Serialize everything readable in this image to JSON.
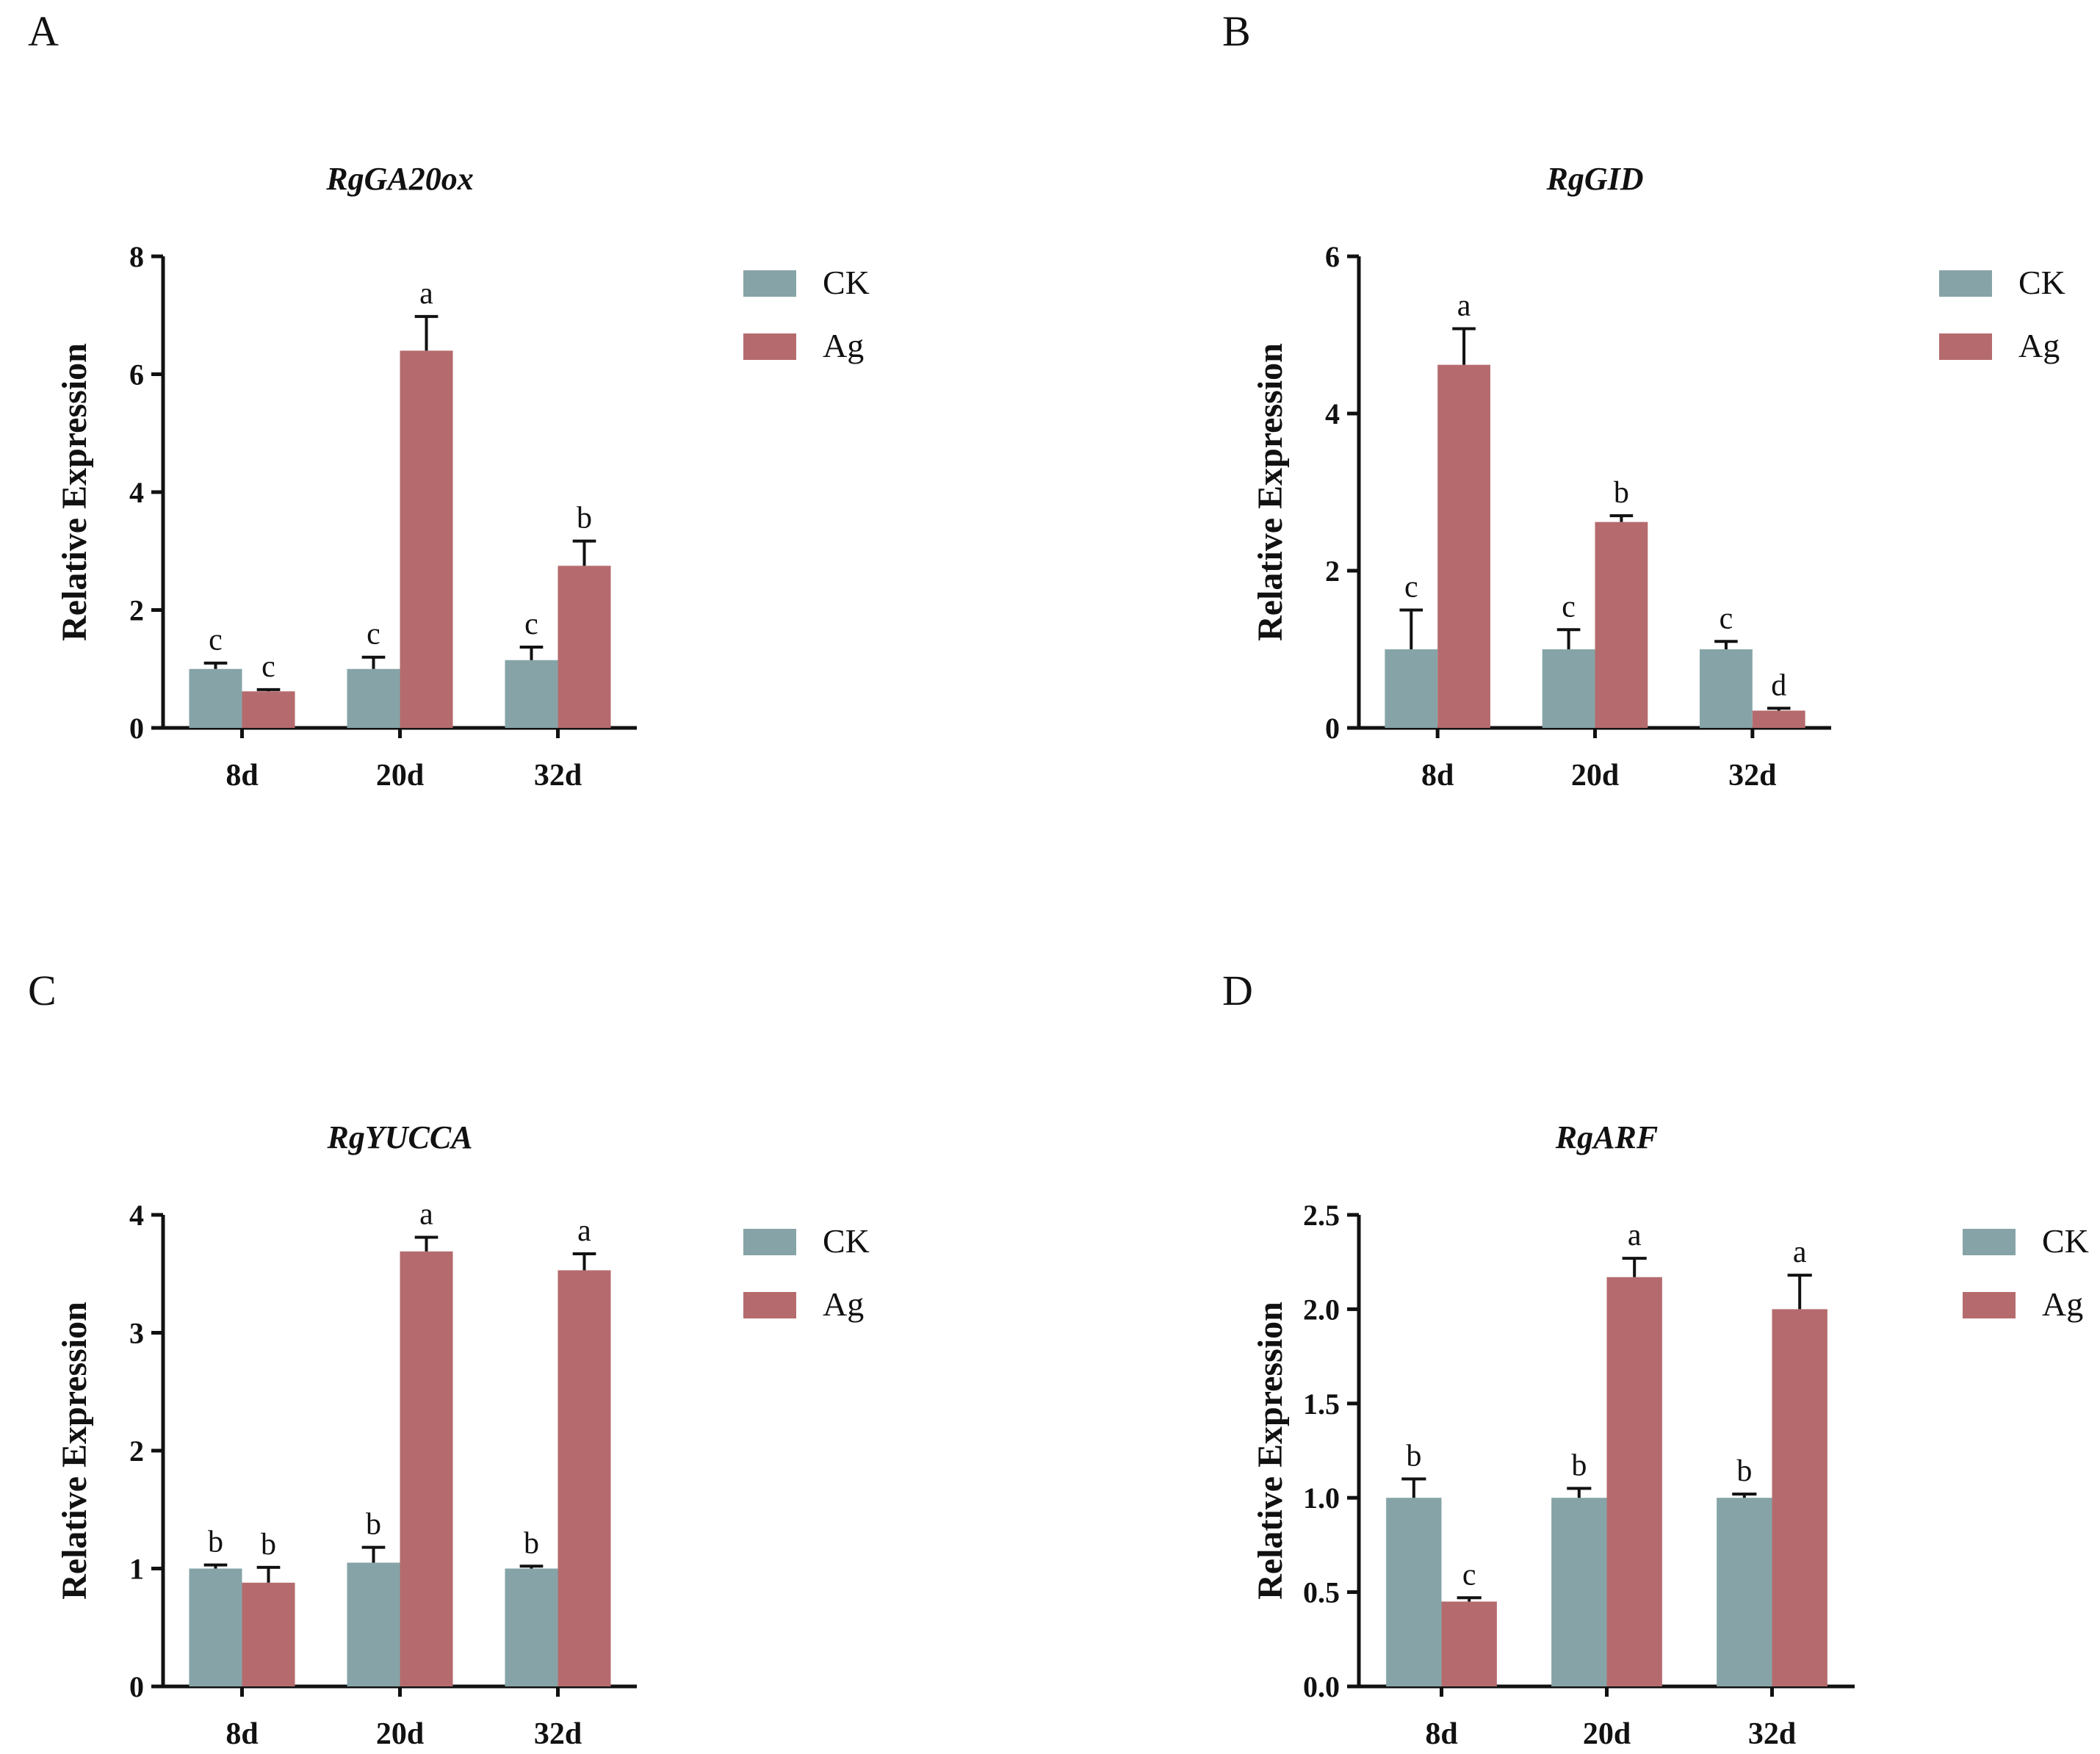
{
  "chart_data": [
    {
      "panel": "A",
      "type": "bar",
      "title": "RgGA20ox",
      "xlabel": "",
      "ylabel": "Relative Expression",
      "categories": [
        "8d",
        "20d",
        "32d"
      ],
      "ylim": [
        0,
        8
      ],
      "yticks": [
        "0",
        "2",
        "4",
        "6",
        "8"
      ],
      "series": [
        {
          "name": "CK",
          "color": "#86a4a7",
          "values": [
            1.0,
            1.0,
            1.15
          ],
          "errors": [
            0.1,
            0.2,
            0.22
          ],
          "labels": [
            "c",
            "c",
            "c"
          ]
        },
        {
          "name": "Ag",
          "color": "#b56b6e",
          "values": [
            0.62,
            6.4,
            2.75
          ],
          "errors": [
            0.03,
            0.58,
            0.42
          ],
          "labels": [
            "c",
            "a",
            "b"
          ]
        }
      ]
    },
    {
      "panel": "B",
      "type": "bar",
      "title": "RgGID",
      "xlabel": "",
      "ylabel": "Relative Expression",
      "categories": [
        "8d",
        "20d",
        "32d"
      ],
      "ylim": [
        0,
        6
      ],
      "yticks": [
        "0",
        "2",
        "4",
        "6"
      ],
      "series": [
        {
          "name": "CK",
          "color": "#86a4a7",
          "values": [
            1.0,
            1.0,
            1.0
          ],
          "errors": [
            0.5,
            0.25,
            0.1
          ],
          "labels": [
            "c",
            "c",
            "c"
          ]
        },
        {
          "name": "Ag",
          "color": "#b56b6e",
          "values": [
            4.62,
            2.62,
            0.22
          ],
          "errors": [
            0.46,
            0.08,
            0.03
          ],
          "labels": [
            "a",
            "b",
            "d"
          ]
        }
      ]
    },
    {
      "panel": "C",
      "type": "bar",
      "title": "RgYUCCA",
      "xlabel": "",
      "ylabel": "Relative Expression",
      "categories": [
        "8d",
        "20d",
        "32d"
      ],
      "ylim": [
        0,
        4
      ],
      "yticks": [
        "0",
        "1",
        "2",
        "3",
        "4"
      ],
      "series": [
        {
          "name": "CK",
          "color": "#86a4a7",
          "values": [
            1.0,
            1.05,
            1.0
          ],
          "errors": [
            0.03,
            0.13,
            0.02
          ],
          "labels": [
            "b",
            "b",
            "b"
          ]
        },
        {
          "name": "Ag",
          "color": "#b56b6e",
          "values": [
            0.88,
            3.69,
            3.53
          ],
          "errors": [
            0.13,
            0.12,
            0.14
          ],
          "labels": [
            "b",
            "a",
            "a"
          ]
        }
      ]
    },
    {
      "panel": "D",
      "type": "bar",
      "title": "RgARF",
      "xlabel": "",
      "ylabel": "Relative Expression",
      "categories": [
        "8d",
        "20d",
        "32d"
      ],
      "ylim": [
        0,
        2.5
      ],
      "yticks": [
        "0.0",
        "0.5",
        "1.0",
        "1.5",
        "2.0",
        "2.5"
      ],
      "series": [
        {
          "name": "CK",
          "color": "#86a4a7",
          "values": [
            1.0,
            1.0,
            1.0
          ],
          "errors": [
            0.1,
            0.05,
            0.02
          ],
          "labels": [
            "b",
            "b",
            "b"
          ]
        },
        {
          "name": "Ag",
          "color": "#b56b6e",
          "values": [
            0.45,
            2.17,
            2.0
          ],
          "errors": [
            0.02,
            0.1,
            0.18
          ],
          "labels": [
            "c",
            "a",
            "a"
          ]
        }
      ]
    }
  ]
}
